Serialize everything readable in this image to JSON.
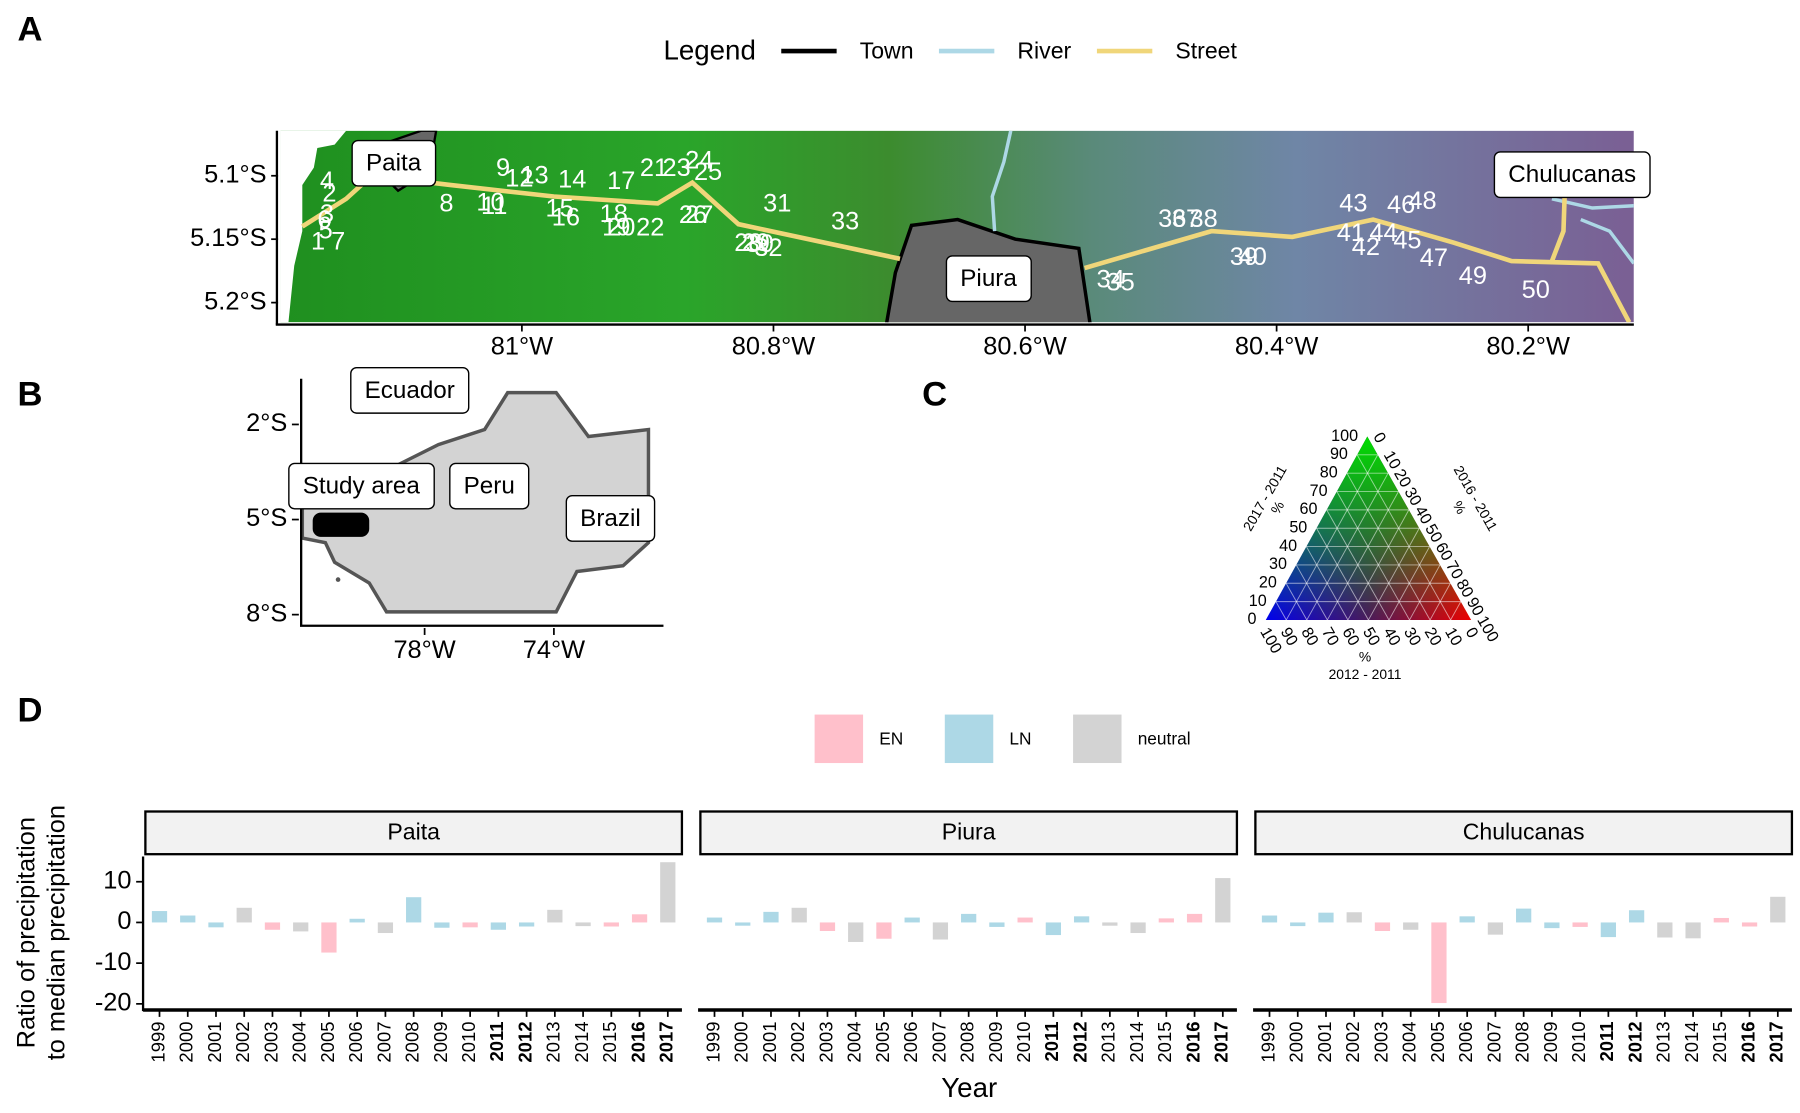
{
  "panel_labels": [
    "A",
    "B",
    "C",
    "D"
  ],
  "chart_data": [
    {
      "type": "map",
      "legend_title": "Legend",
      "legend": [
        {
          "name": "Town",
          "color": "#000000"
        },
        {
          "name": "River",
          "color": "#add8e6"
        },
        {
          "name": "Street",
          "color": "#f0d67a"
        }
      ],
      "xlim": [
        -81.192,
        -80.116
      ],
      "ylim": [
        -5.2155,
        -5.0645
      ],
      "xticks": [
        {
          "value": -81,
          "label": "81°W"
        },
        {
          "value": -80.8,
          "label": "80.8°W"
        },
        {
          "value": -80.6,
          "label": "80.6°W"
        },
        {
          "value": -80.4,
          "label": "80.4°W"
        },
        {
          "value": -80.2,
          "label": "80.2°W"
        }
      ],
      "yticks": [
        {
          "value": -5.1,
          "label": "5.1°S"
        },
        {
          "value": -5.15,
          "label": "5.15°S"
        },
        {
          "value": -5.2,
          "label": "5.2°S"
        }
      ],
      "towns": [
        {
          "name": "Paita",
          "lon": -81.102,
          "lat": -5.091
        },
        {
          "name": "Piura",
          "lon": -80.629,
          "lat": -5.182
        },
        {
          "name": "Chulucanas",
          "lon": -80.165,
          "lat": -5.1
        }
      ],
      "sites": [
        {
          "label": "1",
          "lon": -81.162,
          "lat": -5.153
        },
        {
          "label": "2",
          "lon": -81.153,
          "lat": -5.115
        },
        {
          "label": "3",
          "lon": -81.155,
          "lat": -5.131
        },
        {
          "label": "4",
          "lon": -81.155,
          "lat": -5.105
        },
        {
          "label": "5",
          "lon": -81.156,
          "lat": -5.144
        },
        {
          "label": "6",
          "lon": -81.157,
          "lat": -5.136
        },
        {
          "label": "7",
          "lon": -81.146,
          "lat": -5.153
        },
        {
          "label": "8",
          "lon": -81.06,
          "lat": -5.123
        },
        {
          "label": "9",
          "lon": -81.015,
          "lat": -5.095
        },
        {
          "label": "10",
          "lon": -81.025,
          "lat": -5.122
        },
        {
          "label": "11",
          "lon": -81.022,
          "lat": -5.125
        },
        {
          "label": "12",
          "lon": -81.002,
          "lat": -5.103
        },
        {
          "label": "13",
          "lon": -80.99,
          "lat": -5.101
        },
        {
          "label": "14",
          "lon": -80.96,
          "lat": -5.104
        },
        {
          "label": "15",
          "lon": -80.97,
          "lat": -5.127
        },
        {
          "label": "16",
          "lon": -80.965,
          "lat": -5.134
        },
        {
          "label": "17",
          "lon": -80.921,
          "lat": -5.105
        },
        {
          "label": "18",
          "lon": -80.927,
          "lat": -5.131
        },
        {
          "label": "19",
          "lon": -80.925,
          "lat": -5.142
        },
        {
          "label": "20",
          "lon": -80.921,
          "lat": -5.142
        },
        {
          "label": "21",
          "lon": -80.895,
          "lat": -5.095
        },
        {
          "label": "22",
          "lon": -80.898,
          "lat": -5.142
        },
        {
          "label": "23",
          "lon": -80.877,
          "lat": -5.095
        },
        {
          "label": "24",
          "lon": -80.859,
          "lat": -5.089
        },
        {
          "label": "25",
          "lon": -80.852,
          "lat": -5.098
        },
        {
          "label": "26",
          "lon": -80.864,
          "lat": -5.132
        },
        {
          "label": "27",
          "lon": -80.859,
          "lat": -5.132
        },
        {
          "label": "28",
          "lon": -80.82,
          "lat": -5.154
        },
        {
          "label": "29",
          "lon": -80.814,
          "lat": -5.154
        },
        {
          "label": "30",
          "lon": -80.811,
          "lat": -5.155
        },
        {
          "label": "31",
          "lon": -80.797,
          "lat": -5.123
        },
        {
          "label": "32",
          "lon": -80.804,
          "lat": -5.158
        },
        {
          "label": "33",
          "lon": -80.743,
          "lat": -5.137
        },
        {
          "label": "34",
          "lon": -80.532,
          "lat": -5.183
        },
        {
          "label": "35",
          "lon": -80.524,
          "lat": -5.185
        },
        {
          "label": "36",
          "lon": -80.483,
          "lat": -5.135
        },
        {
          "label": "37",
          "lon": -80.472,
          "lat": -5.135
        },
        {
          "label": "38",
          "lon": -80.458,
          "lat": -5.135
        },
        {
          "label": "39",
          "lon": -80.426,
          "lat": -5.165
        },
        {
          "label": "40",
          "lon": -80.419,
          "lat": -5.165
        },
        {
          "label": "41",
          "lon": -80.341,
          "lat": -5.146
        },
        {
          "label": "42",
          "lon": -80.329,
          "lat": -5.157
        },
        {
          "label": "43",
          "lon": -80.339,
          "lat": -5.123
        },
        {
          "label": "44",
          "lon": -80.315,
          "lat": -5.146
        },
        {
          "label": "45",
          "lon": -80.296,
          "lat": -5.152
        },
        {
          "label": "46",
          "lon": -80.301,
          "lat": -5.124
        },
        {
          "label": "47",
          "lon": -80.275,
          "lat": -5.166
        },
        {
          "label": "48",
          "lon": -80.284,
          "lat": -5.121
        },
        {
          "label": "49",
          "lon": -80.244,
          "lat": -5.18
        },
        {
          "label": "50",
          "lon": -80.194,
          "lat": -5.191
        }
      ]
    },
    {
      "type": "map",
      "xlim": [
        -81.82,
        -70.61
      ],
      "ylim": [
        -8.35,
        -0.56
      ],
      "xticks": [
        {
          "value": -78,
          "label": "78°W"
        },
        {
          "value": -74,
          "label": "74°W"
        }
      ],
      "yticks": [
        {
          "value": -2,
          "label": "2°S"
        },
        {
          "value": -5,
          "label": "5°S"
        },
        {
          "value": -8,
          "label": "8°S"
        }
      ],
      "places": [
        {
          "name": "Ecuador",
          "lon": -78.46,
          "lat": -0.96
        },
        {
          "name": "Study area",
          "lon": -79.96,
          "lat": -3.98
        },
        {
          "name": "Peru",
          "lon": -76.0,
          "lat": -3.98
        },
        {
          "name": "Brazil",
          "lon": -72.25,
          "lat": -5.0
        }
      ]
    },
    {
      "type": "ternary",
      "axes": [
        {
          "title": "2017 - 2011",
          "unit": "%"
        },
        {
          "title": "2016 - 2011",
          "unit": "%"
        },
        {
          "title": "2012 - 2011",
          "unit": "%"
        }
      ],
      "ticks": [
        0,
        10,
        20,
        30,
        40,
        50,
        60,
        70,
        80,
        90,
        100
      ]
    },
    {
      "type": "bar",
      "categories": [
        "1999",
        "2000",
        "2001",
        "2002",
        "2003",
        "2004",
        "2005",
        "2006",
        "2007",
        "2008",
        "2009",
        "2010",
        "2011",
        "2012",
        "2013",
        "2014",
        "2015",
        "2016",
        "2017"
      ],
      "bold": [
        false,
        false,
        false,
        false,
        false,
        false,
        false,
        false,
        false,
        false,
        false,
        false,
        true,
        true,
        false,
        false,
        false,
        true,
        true
      ],
      "phases": [
        "LN",
        "LN",
        "LN",
        "neutral",
        "EN",
        "neutral",
        "EN",
        "LN",
        "neutral",
        "LN",
        "LN",
        "EN",
        "LN",
        "LN",
        "neutral",
        "neutral",
        "EN",
        "EN",
        "neutral"
      ],
      "legend": [
        {
          "name": "EN",
          "color": "#ffc0cb"
        },
        {
          "name": "LN",
          "color": "#add8e6"
        },
        {
          "name": "neutral",
          "color": "#d3d3d3"
        }
      ],
      "facets": [
        {
          "name": "Paita",
          "values": [
            2.8,
            1.7,
            -1.2,
            3.6,
            -1.8,
            -2.2,
            -7.4,
            0.9,
            -2.6,
            6.2,
            -1.3,
            -1.2,
            -1.8,
            -1.0,
            3.1,
            -0.9,
            -1.0,
            2.0,
            14.8
          ]
        },
        {
          "name": "Piura",
          "values": [
            1.2,
            -0.8,
            2.6,
            3.6,
            -2.1,
            -4.8,
            -4.0,
            1.2,
            -4.2,
            2.1,
            -1.1,
            1.2,
            -3.1,
            1.5,
            -0.8,
            -2.6,
            1.0,
            2.1,
            10.9
          ]
        },
        {
          "name": "Chulucanas",
          "values": [
            1.7,
            -0.9,
            2.4,
            2.5,
            -2.1,
            -1.8,
            -19.8,
            1.5,
            -3.0,
            3.4,
            -1.4,
            -1.1,
            -3.6,
            3.0,
            -3.7,
            -3.9,
            1.1,
            -1.0,
            6.3
          ]
        }
      ],
      "ylim": [
        -21.5,
        16.2
      ],
      "yticks": [
        -20,
        -10,
        0,
        10
      ],
      "ylabel": [
        "Ratio of precipitation",
        "to median precipitation"
      ],
      "xlabel": "Year"
    }
  ]
}
